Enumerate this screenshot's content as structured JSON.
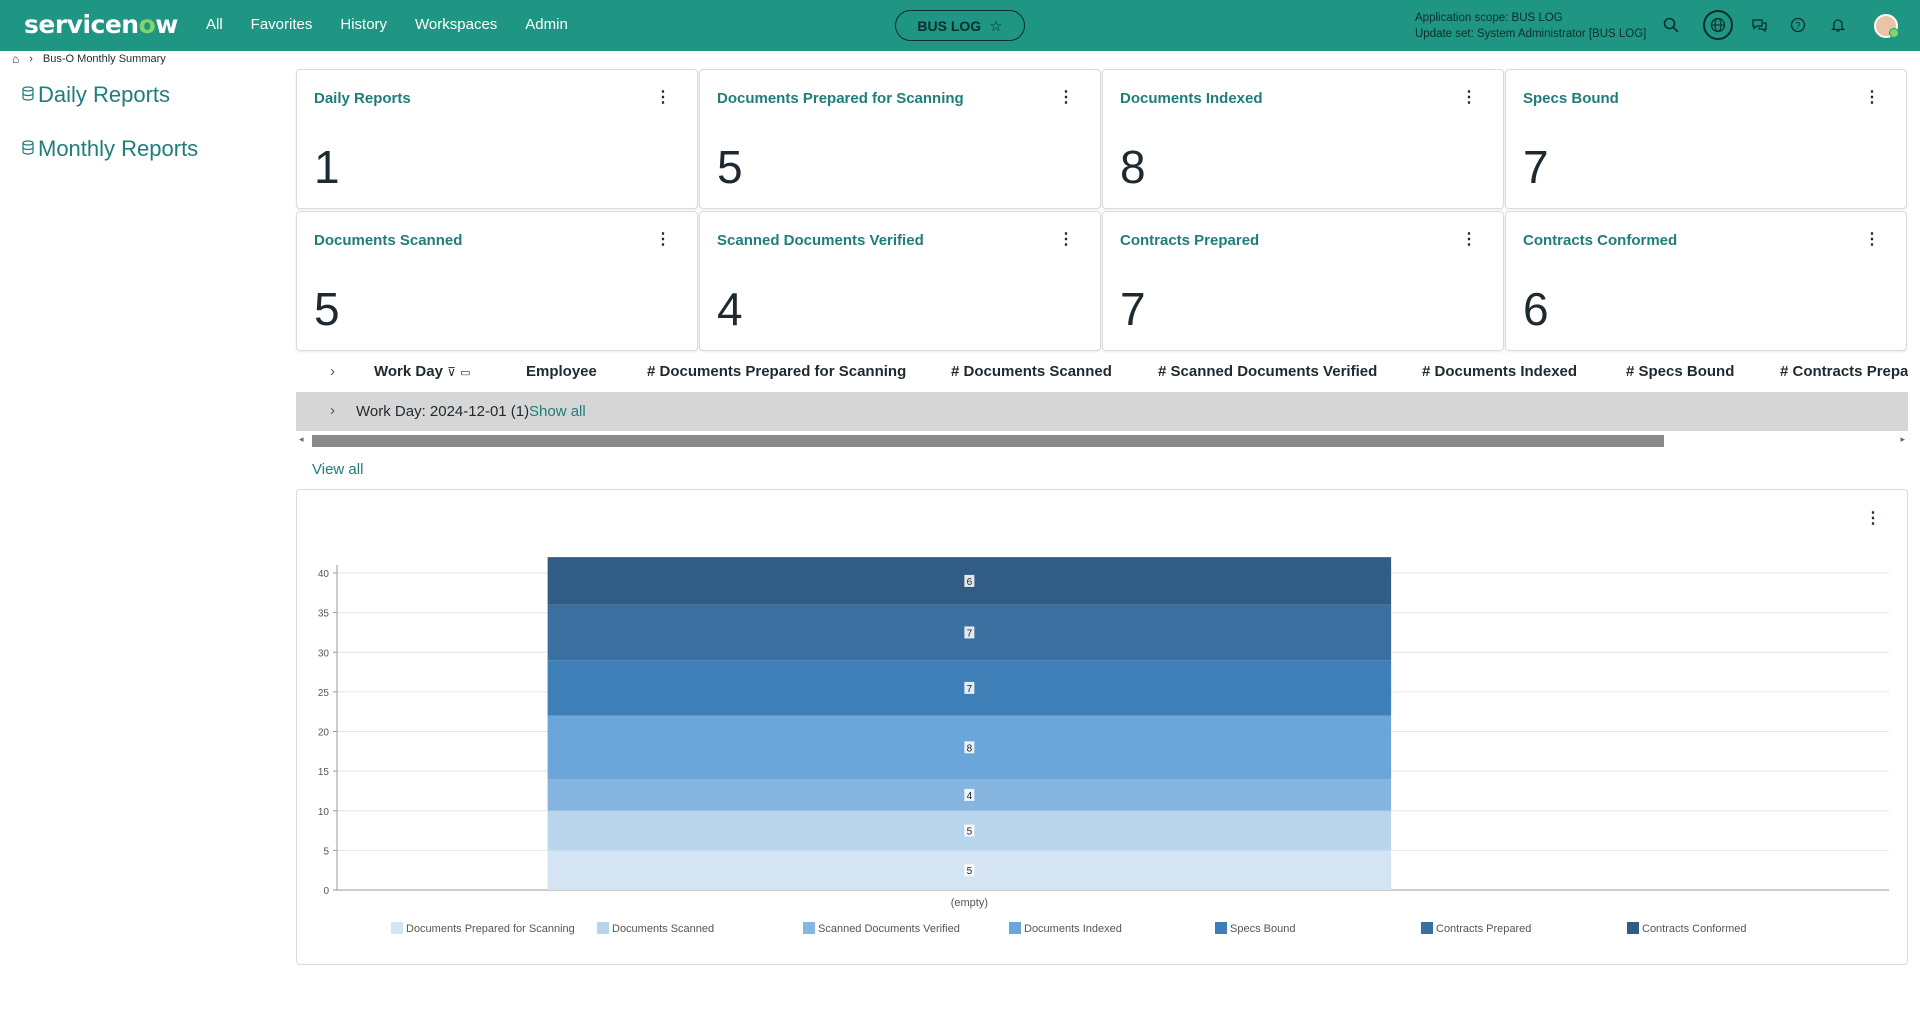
{
  "nav": {
    "logo_main": "servicen",
    "logo_o": "o",
    "logo_end": "w",
    "links": [
      "All",
      "Favorites",
      "History",
      "Workspaces",
      "Admin"
    ],
    "app_pill": "BUS LOG",
    "scope_line1": "Application scope: BUS LOG",
    "scope_line2": "Update set: System Administrator [BUS LOG]",
    "icons": [
      "search-icon",
      "globe-icon",
      "chat-icon",
      "help-icon",
      "bell-icon",
      "avatar"
    ]
  },
  "breadcrumb": {
    "page": "Bus-O Monthly Summary"
  },
  "sidebar": {
    "items": [
      "Daily Reports",
      "Monthly Reports"
    ]
  },
  "tiles": [
    {
      "title": "Daily Reports",
      "value": "1"
    },
    {
      "title": "Documents Prepared for Scanning",
      "value": "5"
    },
    {
      "title": "Documents Indexed",
      "value": "8"
    },
    {
      "title": "Specs Bound",
      "value": "7"
    },
    {
      "title": "Documents Scanned",
      "value": "5"
    },
    {
      "title": "Scanned Documents Verified",
      "value": "4"
    },
    {
      "title": "Contracts Prepared",
      "value": "7"
    },
    {
      "title": "Contracts Conformed",
      "value": "6"
    }
  ],
  "list": {
    "columns": [
      "Work Day",
      "Employee",
      "# Documents Prepared for Scanning",
      "# Documents Scanned",
      "# Scanned Documents Verified",
      "# Documents Indexed",
      "# Specs Bound",
      "# Contracts Prepar"
    ],
    "group_label": "Work Day: 2024-12-01 (1)",
    "show_all": "Show all",
    "view_all": "View all"
  },
  "chart_data": {
    "type": "bar",
    "stacked": true,
    "categories": [
      "(empty)"
    ],
    "series": [
      {
        "name": "Documents Prepared for Scanning",
        "values": [
          5
        ],
        "color": "#d5e4f2"
      },
      {
        "name": "Documents Scanned",
        "values": [
          5
        ],
        "color": "#b9d5ec"
      },
      {
        "name": "Scanned Documents Verified",
        "values": [
          4
        ],
        "color": "#86b6e0"
      },
      {
        "name": "Documents Indexed",
        "values": [
          8
        ],
        "color": "#6aa6d9"
      },
      {
        "name": "Specs Bound",
        "values": [
          7
        ],
        "color": "#3e7fb7"
      },
      {
        "name": "Contracts Prepared",
        "values": [
          7
        ],
        "color": "#3a6f9f"
      },
      {
        "name": "Contracts Conformed",
        "values": [
          6
        ],
        "color": "#305c86"
      }
    ],
    "ylim": [
      0,
      40
    ],
    "yticks": [
      0,
      5,
      10,
      15,
      20,
      25,
      30,
      35,
      40
    ],
    "grid": true,
    "legend": "bottom"
  }
}
